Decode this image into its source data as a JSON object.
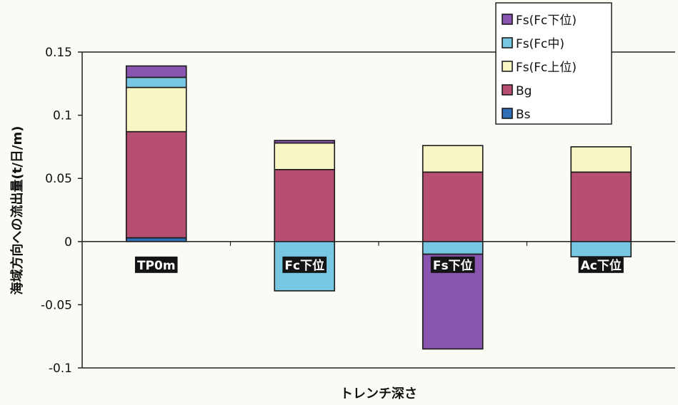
{
  "chart_data": {
    "type": "bar",
    "stacked": true,
    "title": "",
    "xlabel": "トレンチ深さ",
    "ylabel": "海域方向への流出量(t/日/m)",
    "ylim": [
      -0.1,
      0.15
    ],
    "yticks": [
      "0.15",
      "0.1",
      "0.05",
      "0",
      "-0.05",
      "-0.1"
    ],
    "grid": false,
    "legend_position": "top-right",
    "categories": [
      "TP0m",
      "Fc下位",
      "Fs下位",
      "Ac下位"
    ],
    "series": [
      {
        "name": "Bs",
        "color": "#2f6fb5",
        "values": [
          0.003,
          0.0,
          0.0,
          0.0
        ]
      },
      {
        "name": "Bg",
        "color": "#b74f72",
        "values": [
          0.084,
          0.057,
          0.055,
          0.055
        ]
      },
      {
        "name": "Fs(Fc上位)",
        "color": "#f8f6c4",
        "values": [
          0.035,
          0.021,
          0.021,
          0.02
        ]
      },
      {
        "name": "Fs(Fc中)",
        "color": "#78c7e2",
        "values": [
          0.008,
          -0.039,
          -0.01,
          -0.012
        ]
      },
      {
        "name": "Fs(Fc下位)",
        "color": "#8a55b0",
        "values": [
          0.009,
          0.002,
          -0.075,
          0.0
        ]
      }
    ],
    "legend_order": [
      "Fs(Fc下位)",
      "Fs(Fc中)",
      "Fs(Fc上位)",
      "Bg",
      "Bs"
    ]
  }
}
